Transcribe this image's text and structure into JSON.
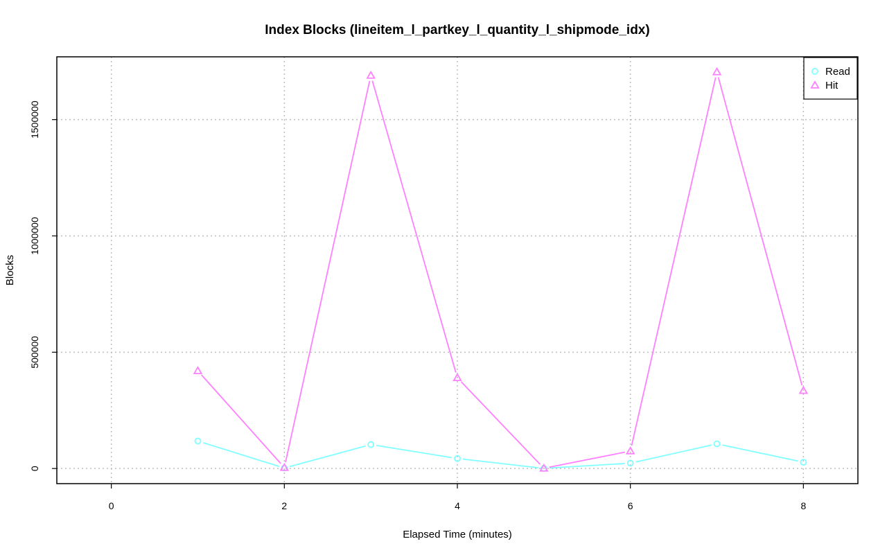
{
  "chart_data": {
    "type": "line",
    "title": "Index Blocks (lineitem_l_partkey_l_quantity_l_shipmode_idx)",
    "xlabel": "Elapsed Time (minutes)",
    "ylabel": "Blocks",
    "xlim": [
      -0.63,
      8.63
    ],
    "ylim": [
      -65000,
      1770000
    ],
    "xticks": [
      0,
      2,
      4,
      6,
      8
    ],
    "yticks": [
      0,
      500000,
      1000000,
      1500000
    ],
    "grid": true,
    "legend_position": "top-right",
    "series": [
      {
        "name": "Read",
        "color": "#7fffff",
        "marker": "circle",
        "x": [
          1,
          2,
          3,
          4,
          5,
          6,
          7,
          8
        ],
        "values": [
          118000,
          2000,
          103000,
          43000,
          500,
          23000,
          106000,
          27000
        ]
      },
      {
        "name": "Hit",
        "color": "#ff80ff",
        "marker": "triangle",
        "x": [
          1,
          2,
          3,
          4,
          5,
          6,
          7,
          8
        ],
        "values": [
          420000,
          4000,
          1690000,
          390000,
          1000,
          75000,
          1705000,
          335000
        ]
      }
    ]
  }
}
